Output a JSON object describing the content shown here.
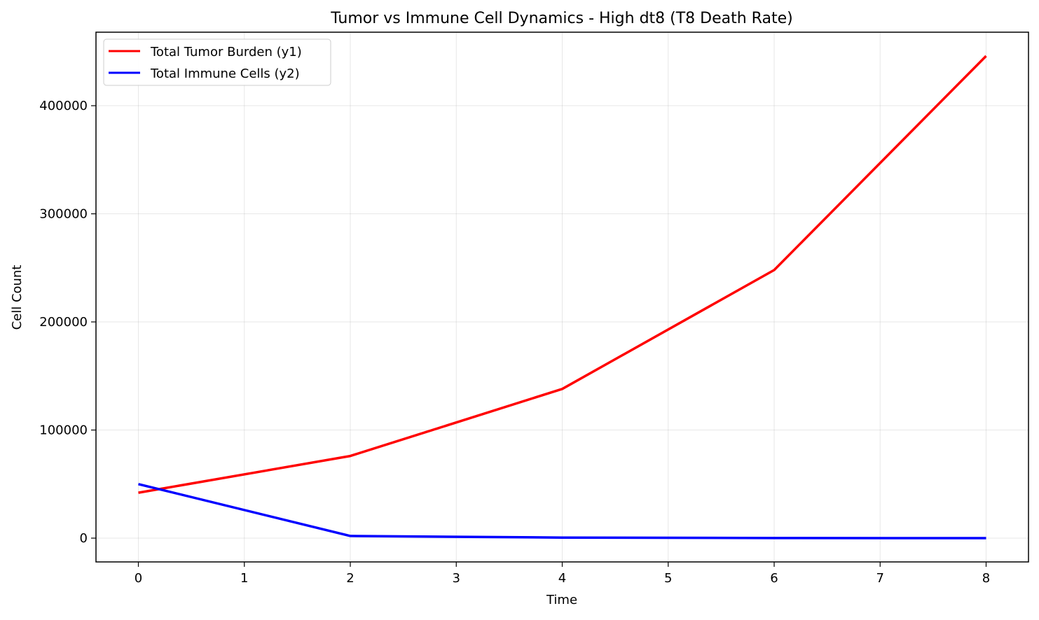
{
  "chart_data": {
    "type": "line",
    "title": "Tumor vs Immune Cell Dynamics - High dt8 (T8 Death Rate)",
    "xlabel": "Time",
    "ylabel": "Cell Count",
    "xlim": [
      -0.4,
      8.4
    ],
    "ylim": [
      -22000,
      468000
    ],
    "xticks": [
      0,
      1,
      2,
      3,
      4,
      5,
      6,
      7,
      8
    ],
    "xtick_labels": [
      "0",
      "1",
      "2",
      "3",
      "4",
      "5",
      "6",
      "7",
      "8"
    ],
    "yticks": [
      0,
      100000,
      200000,
      300000,
      400000
    ],
    "ytick_labels": [
      "0",
      "100000",
      "200000",
      "300000",
      "400000"
    ],
    "grid": true,
    "legend_position": "upper-left",
    "series": [
      {
        "name": "Total Tumor Burden (y1)",
        "color": "#ff0000",
        "x": [
          0,
          2,
          4,
          6,
          8
        ],
        "y": [
          42000,
          76000,
          138000,
          248000,
          446000
        ]
      },
      {
        "name": "Total Immune Cells (y2)",
        "color": "#0000ff",
        "x": [
          0,
          2,
          4,
          6,
          8
        ],
        "y": [
          50000,
          2000,
          500,
          100,
          0
        ]
      }
    ]
  }
}
